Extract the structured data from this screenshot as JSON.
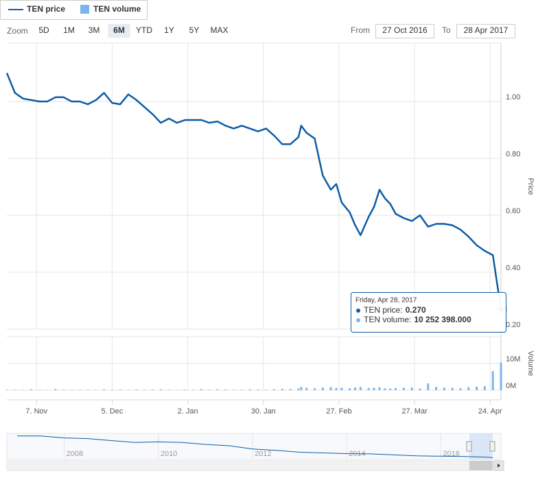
{
  "chart_data": {
    "type": "line",
    "legend": {
      "position": "top-left"
    },
    "range_selector": {
      "label": "Zoom",
      "buttons": [
        "5D",
        "1M",
        "3M",
        "6M",
        "YTD",
        "1Y",
        "5Y",
        "MAX"
      ],
      "selected_button": 3,
      "from_label": "From",
      "from": "27 Oct 2016",
      "to_label": "To",
      "to": "28 Apr 2017"
    },
    "grid": true,
    "x": [
      "2016-10-27",
      "2016-10-30",
      "2016-11-02",
      "2016-11-05",
      "2016-11-08",
      "2016-11-11",
      "2016-11-14",
      "2016-11-17",
      "2016-11-20",
      "2016-11-23",
      "2016-11-26",
      "2016-11-29",
      "2016-12-02",
      "2016-12-05",
      "2016-12-08",
      "2016-12-11",
      "2016-12-14",
      "2016-12-17",
      "2016-12-20",
      "2016-12-23",
      "2016-12-26",
      "2016-12-29",
      "2017-01-01",
      "2017-01-04",
      "2017-01-07",
      "2017-01-10",
      "2017-01-13",
      "2017-01-16",
      "2017-01-19",
      "2017-01-22",
      "2017-01-25",
      "2017-01-28",
      "2017-01-31",
      "2017-02-03",
      "2017-02-06",
      "2017-02-09",
      "2017-02-12",
      "2017-02-13",
      "2017-02-15",
      "2017-02-18",
      "2017-02-21",
      "2017-02-24",
      "2017-02-26",
      "2017-02-28",
      "2017-03-03",
      "2017-03-05",
      "2017-03-07",
      "2017-03-10",
      "2017-03-12",
      "2017-03-14",
      "2017-03-16",
      "2017-03-18",
      "2017-03-20",
      "2017-03-23",
      "2017-03-26",
      "2017-03-29",
      "2017-04-01",
      "2017-04-04",
      "2017-04-07",
      "2017-04-10",
      "2017-04-13",
      "2017-04-16",
      "2017-04-19",
      "2017-04-22",
      "2017-04-25",
      "2017-04-28"
    ],
    "xlim": [
      "2016-10-27",
      "2017-04-28"
    ],
    "xticks": [
      {
        "value": "2016-11-07",
        "label": "7. Nov"
      },
      {
        "value": "2016-12-05",
        "label": "5. Dec"
      },
      {
        "value": "2017-01-02",
        "label": "2. Jan"
      },
      {
        "value": "2017-01-30",
        "label": "30. Jan"
      },
      {
        "value": "2017-02-27",
        "label": "27. Feb"
      },
      {
        "value": "2017-03-27",
        "label": "27. Mar"
      },
      {
        "value": "2017-04-24",
        "label": "24. Apr"
      }
    ],
    "ylabel": "Price",
    "ylim": [
      0.2,
      1.2
    ],
    "yticks": [
      {
        "value": 0.2,
        "label": "0.20"
      },
      {
        "value": 0.4,
        "label": "0.40"
      },
      {
        "value": 0.6,
        "label": "0.60"
      },
      {
        "value": 0.8,
        "label": "0.80"
      },
      {
        "value": 1.0,
        "label": "1.00"
      }
    ],
    "y2label": "Volume",
    "y2lim": [
      0,
      20000000
    ],
    "y2ticks": [
      {
        "value": 0,
        "label": "0M"
      },
      {
        "value": 10000000,
        "label": "10M"
      }
    ],
    "series": [
      {
        "name": "TEN price",
        "color": "#0d5ca6",
        "values": [
          1.1,
          1.03,
          1.01,
          1.005,
          1.0,
          1.0,
          1.015,
          1.015,
          1.0,
          1.0,
          0.99,
          1.005,
          1.03,
          0.995,
          0.99,
          1.025,
          1.005,
          0.98,
          0.955,
          0.925,
          0.94,
          0.925,
          0.935,
          0.935,
          0.935,
          0.925,
          0.93,
          0.915,
          0.905,
          0.915,
          0.905,
          0.895,
          0.905,
          0.88,
          0.85,
          0.85,
          0.875,
          0.915,
          0.89,
          0.87,
          0.74,
          0.69,
          0.71,
          0.645,
          0.61,
          0.565,
          0.53,
          0.595,
          0.63,
          0.69,
          0.66,
          0.64,
          0.605,
          0.59,
          0.58,
          0.6,
          0.56,
          0.57,
          0.57,
          0.565,
          0.55,
          0.525,
          0.495,
          0.475,
          0.46,
          0.27
        ]
      },
      {
        "name": "TEN volume",
        "type": "bar",
        "axis": "y2",
        "color": "#7cb5ec",
        "values": [
          200000,
          150000,
          100000,
          300000,
          150000,
          100000,
          400000,
          200000,
          100000,
          150000,
          200000,
          100000,
          300000,
          150000,
          200000,
          100000,
          250000,
          150000,
          200000,
          300000,
          150000,
          100000,
          200000,
          150000,
          400000,
          200000,
          300000,
          250000,
          150000,
          200000,
          300000,
          250000,
          200000,
          350000,
          500000,
          400000,
          600000,
          1200000,
          900000,
          700000,
          1000000,
          1100000,
          800000,
          900000,
          700000,
          1000000,
          1200000,
          800000,
          900000,
          1100000,
          700000,
          600000,
          800000,
          900000,
          1000000,
          600000,
          2500000,
          1200000,
          1000000,
          900000,
          700000,
          1100000,
          1300000,
          1500000,
          7100000,
          10252398
        ]
      }
    ],
    "tooltip": {
      "header": "Friday, Apr 28, 2017",
      "rows": [
        {
          "label": "TEN price:",
          "value": "0.270"
        },
        {
          "label": "TEN volume:",
          "value": "10 252 398.000"
        }
      ]
    },
    "navigator": {
      "x": [
        2007,
        2007.5,
        2008,
        2008.5,
        2009,
        2009.5,
        2010,
        2010.5,
        2011,
        2011.5,
        2012,
        2012.5,
        2013,
        2013.5,
        2014,
        2014.5,
        2015,
        2015.5,
        2016,
        2016.5,
        2017,
        2017.1
      ],
      "values": [
        3.6,
        3.6,
        3.3,
        3.2,
        2.9,
        2.6,
        2.7,
        2.6,
        2.3,
        2.1,
        1.6,
        1.4,
        1.1,
        1.0,
        0.9,
        0.85,
        0.7,
        0.55,
        0.5,
        0.45,
        0.35,
        0.27
      ],
      "xlim": [
        2007,
        2017.1
      ],
      "xticks": [
        2008,
        2010,
        2012,
        2014,
        2016
      ],
      "ylim": [
        0,
        4
      ]
    }
  }
}
